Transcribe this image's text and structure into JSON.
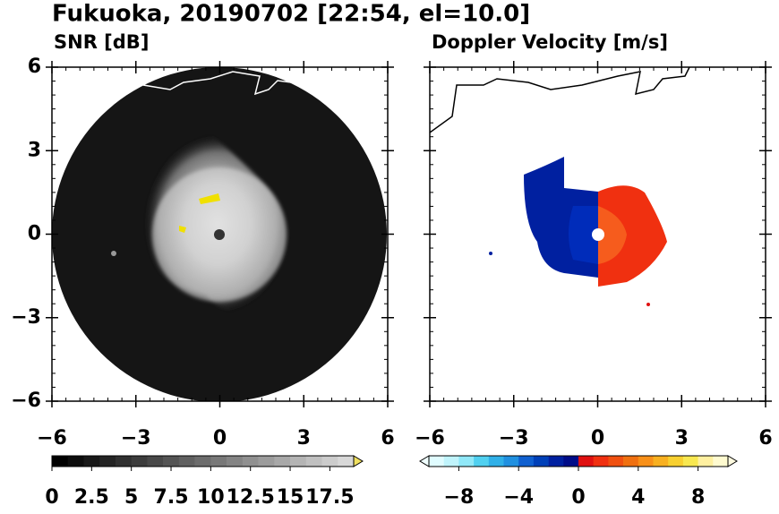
{
  "title": "Fukuoka, 20190702 [22:54, el=10.0]",
  "chart_data": [
    {
      "type": "image",
      "title": "SNR [dB]",
      "xlim": [
        -6,
        6
      ],
      "ylim": [
        -6,
        6
      ],
      "xticks": [
        {
          "value": -6,
          "label": "−6"
        },
        {
          "value": -3,
          "label": "−3"
        },
        0,
        3,
        6
      ],
      "yticks": [
        {
          "value": -6,
          "label": "−6"
        },
        {
          "value": -3,
          "label": "−3"
        },
        0,
        3,
        6
      ],
      "colorbar": {
        "clim": [
          0,
          19
        ],
        "extend": "max",
        "over_color": "#f0e060",
        "colors": [
          "#000000",
          "#0c0c0c",
          "#181818",
          "#242424",
          "#303030",
          "#3c3c3c",
          "#484848",
          "#545454",
          "#606060",
          "#6c6c6c",
          "#787878",
          "#848484",
          "#909090",
          "#9c9c9c",
          "#a8a8a8",
          "#b4b4b4",
          "#c0c0c0",
          "#cccccc",
          "#d8d8d8"
        ],
        "ticks": [
          0,
          2.5,
          5,
          7.5,
          10,
          12.5,
          15,
          17.5
        ]
      }
    },
    {
      "type": "image",
      "title": "Doppler Velocity [m/s]",
      "xlim": [
        -6,
        6
      ],
      "ylim": [
        -6,
        6
      ],
      "xticks": [
        {
          "value": -6,
          "label": "−6"
        },
        {
          "value": -3,
          "label": "−3"
        },
        0,
        3,
        6
      ],
      "yticks": [
        {
          "value": -6,
          "label": "−6"
        },
        {
          "value": -3,
          "label": "−3"
        },
        0,
        3,
        6
      ],
      "colorbar": {
        "clim": [
          -10,
          10
        ],
        "extend": "both",
        "under_color": "#f0ffff",
        "over_color": "#fffbe0",
        "colors": [
          "#e0fcff",
          "#c0f4fc",
          "#90e8f8",
          "#50d0f0",
          "#30b0e8",
          "#2090e0",
          "#1060d0",
          "#0040b8",
          "#0020a0",
          "#000c88",
          "#e01010",
          "#f03010",
          "#f05010",
          "#f07010",
          "#f89018",
          "#f8b020",
          "#f8d030",
          "#f8e850",
          "#fff0a0",
          "#fffbd0"
        ],
        "ticks": [
          {
            "value": -8,
            "label": "−8"
          },
          {
            "value": -4,
            "label": "−4"
          },
          0,
          4,
          8
        ]
      }
    }
  ]
}
